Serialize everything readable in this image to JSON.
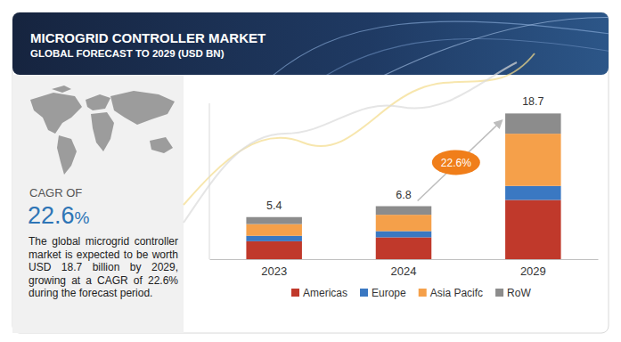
{
  "chart_data": {
    "type": "bar",
    "stacked": true,
    "title": "MICROGRID CONTROLLER MARKET",
    "subtitle": "GLOBAL FORECAST TO 2029 (USD BN)",
    "categories": [
      "2023",
      "2024",
      "2029"
    ],
    "series": [
      {
        "name": "Americas",
        "color": "#c0392b",
        "values": [
          2.3,
          2.8,
          7.6
        ]
      },
      {
        "name": "Europe",
        "color": "#3a78c2",
        "values": [
          0.7,
          0.8,
          1.8
        ]
      },
      {
        "name": "Asia Pacifc",
        "color": "#f5a04a",
        "values": [
          1.5,
          2.1,
          6.7
        ]
      },
      {
        "name": "RoW",
        "color": "#8c8c8c",
        "values": [
          0.9,
          1.1,
          2.6
        ]
      }
    ],
    "totals": [
      5.4,
      6.8,
      18.7
    ],
    "annotations": [
      {
        "text": "22.6%"
      }
    ],
    "ylim": [
      0,
      20
    ],
    "tick_labels": "x",
    "legend": "bottom"
  },
  "side_panel": {
    "label": "CAGR OF",
    "value": "22.6",
    "unit": "%",
    "text": "The global microgrid controller market is expected to be worth USD 18.7 billion by 2029, growing at a CAGR of 22.6% during the forecast period."
  }
}
